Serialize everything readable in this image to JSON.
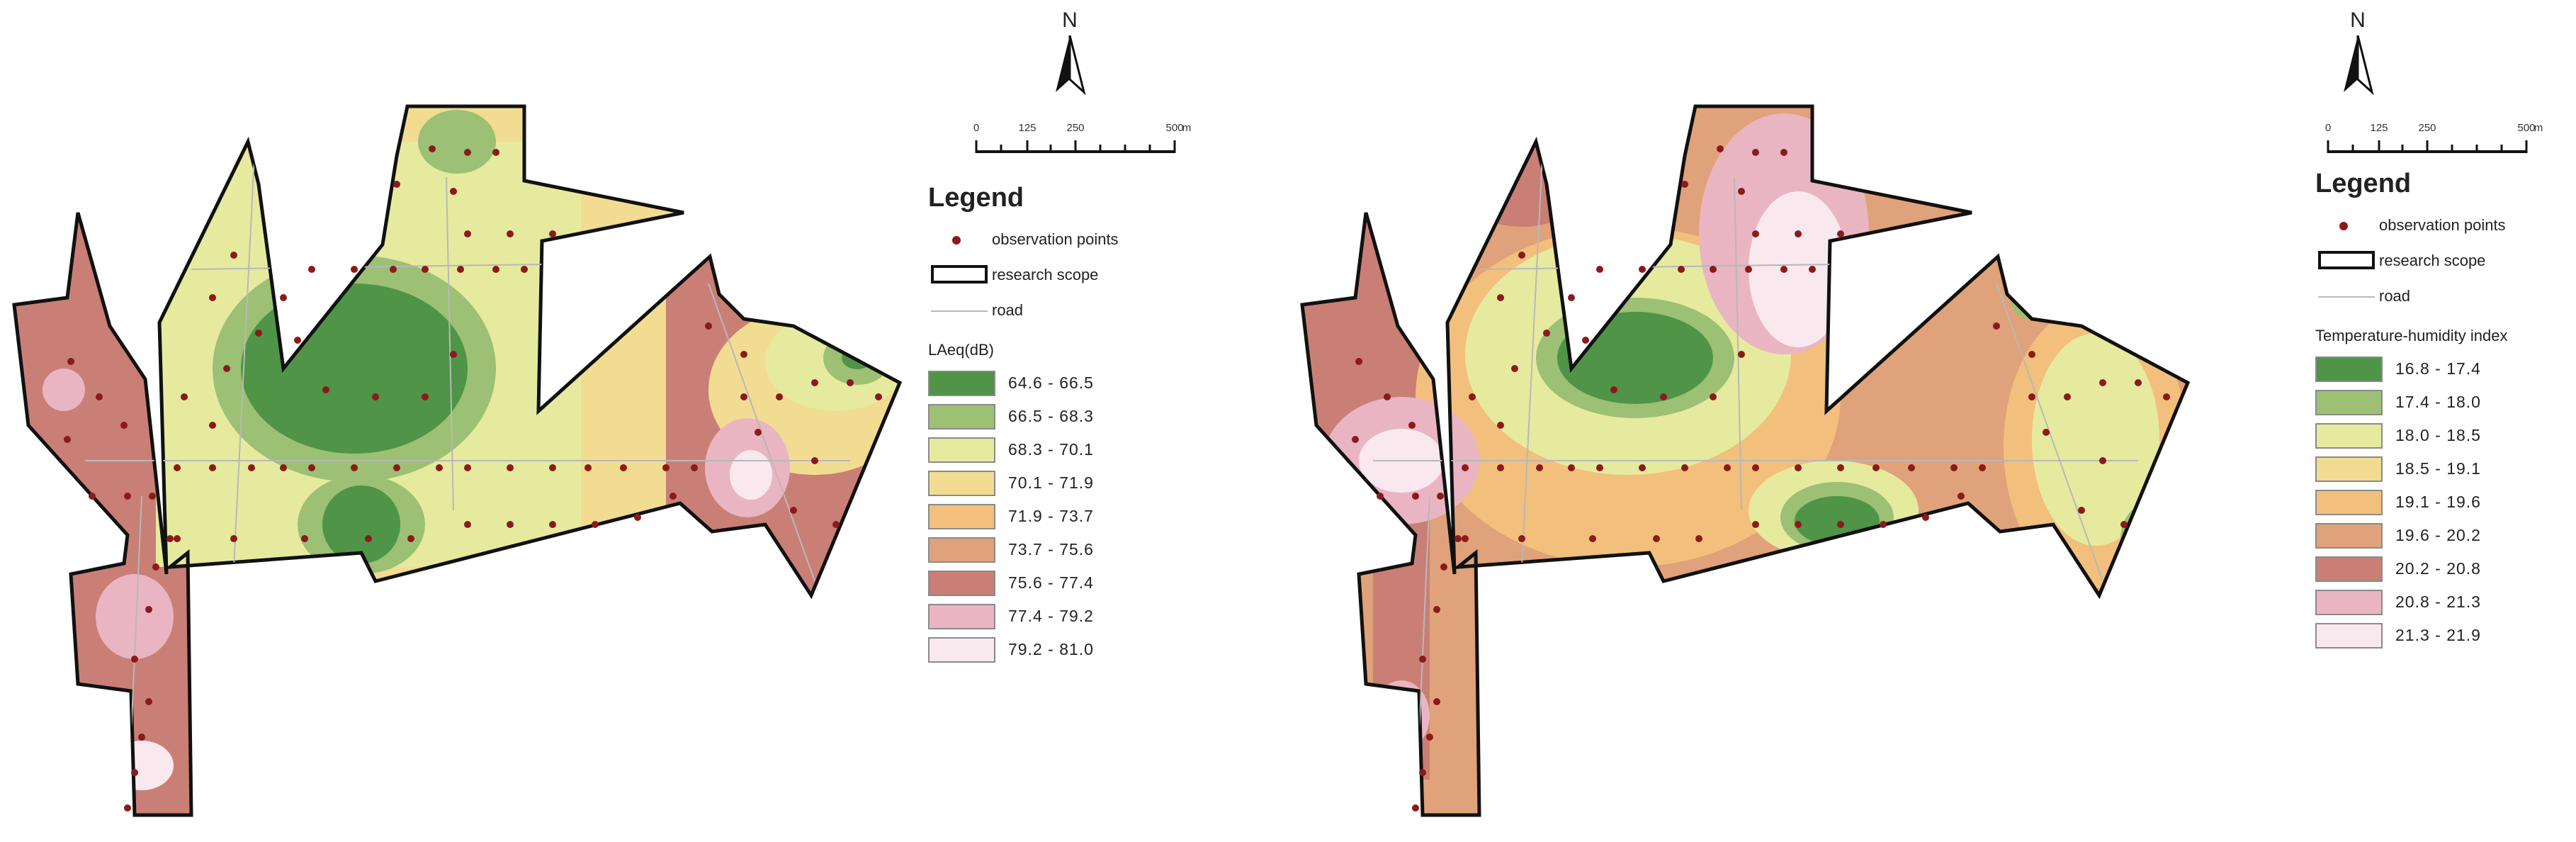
{
  "panels": [
    {
      "id": "laeq",
      "north": "N",
      "scale": {
        "labels": [
          "0",
          "125",
          "250",
          "500"
        ],
        "unit": "m"
      },
      "legend": {
        "title": "Legend",
        "point_label": "observation points",
        "scope_label": "research scope",
        "road_label": "road",
        "class_title": "LAeq(dB)",
        "classes": [
          {
            "label": "64.6 - 66.5",
            "color": "#4f9447"
          },
          {
            "label": "66.5 - 68.3",
            "color": "#9cc074"
          },
          {
            "label": "68.3 - 70.1",
            "color": "#e6ea9e"
          },
          {
            "label": "70.1 - 71.9",
            "color": "#f2dc92"
          },
          {
            "label": "71.9 - 73.7",
            "color": "#f2c07c"
          },
          {
            "label": "73.7 - 75.6",
            "color": "#e0a27a"
          },
          {
            "label": "75.6 - 77.4",
            "color": "#c97f76"
          },
          {
            "label": "77.4 - 79.2",
            "color": "#eab5c2"
          },
          {
            "label": "79.2 - 81.0",
            "color": "#fae8ef"
          }
        ]
      }
    },
    {
      "id": "thi",
      "north": "N",
      "scale": {
        "labels": [
          "0",
          "125",
          "250",
          "500"
        ],
        "unit": "m"
      },
      "legend": {
        "title": "Legend",
        "point_label": "observation points",
        "scope_label": "research scope",
        "road_label": "road",
        "class_title": "Temperature-humidity index",
        "classes": [
          {
            "label": "16.8 - 17.4",
            "color": "#4f9447"
          },
          {
            "label": "17.4 - 18.0",
            "color": "#9cc074"
          },
          {
            "label": "18.0 - 18.5",
            "color": "#e6ea9e"
          },
          {
            "label": "18.5 - 19.1",
            "color": "#f2dc92"
          },
          {
            "label": "19.1 - 19.6",
            "color": "#f2c07c"
          },
          {
            "label": "19.6 - 20.2",
            "color": "#e0a27a"
          },
          {
            "label": "20.2 - 20.8",
            "color": "#c97f76"
          },
          {
            "label": "20.8 - 21.3",
            "color": "#eab5c2"
          },
          {
            "label": "21.3 - 21.9",
            "color": "#fae8ef"
          }
        ]
      }
    }
  ],
  "colors": {
    "point": "#8b1a1a",
    "scope_outline": "#111111",
    "road": "#b8b8b8"
  }
}
